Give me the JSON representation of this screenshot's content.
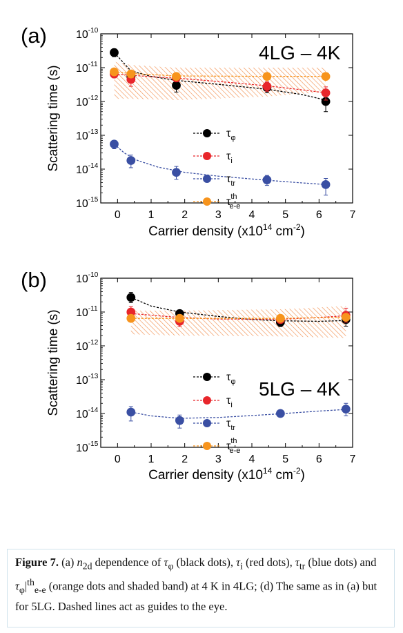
{
  "chart_data": [
    {
      "type": "scatter",
      "panel_label": "(a)",
      "annotation": "4LG – 4K",
      "xlabel": "Carrier density (x10",
      "xlabel_sup": "14",
      "xlabel_unit": " cm",
      "xlabel_unit_sup": "-2",
      "xlabel_end": ")",
      "ylabel": "Scattering time (s)",
      "xlim": [
        -0.5,
        7
      ],
      "ylim_log10": [
        -15,
        -10
      ],
      "x_ticks": [
        "0",
        "1",
        "2",
        "3",
        "4",
        "5",
        "6",
        "7"
      ],
      "log_scale_y": true,
      "y_tick_exponents": [
        "-10",
        "-11",
        "-12",
        "-13",
        "-14",
        "-15"
      ],
      "series": [
        {
          "key": "phi",
          "name_main": "τ",
          "name_sub": "φ",
          "name_sup": "",
          "color": "#000000",
          "points": [
            {
              "x": -0.1,
              "y": 2.8e-11,
              "ylo": 2.1e-11,
              "yhi": 3.6e-11
            },
            {
              "x": 0.4,
              "y": 5.5e-12,
              "ylo": 3.8e-12,
              "yhi": 7.5e-12
            },
            {
              "x": 1.75,
              "y": 3e-12,
              "ylo": 1.9e-12,
              "yhi": 4.6e-12
            },
            {
              "x": 4.45,
              "y": 2.6e-12,
              "ylo": 1.8e-12,
              "yhi": 3.6e-12
            },
            {
              "x": 6.2,
              "y": 1e-12,
              "ylo": 5e-13,
              "yhi": 1.8e-12
            }
          ],
          "fit": [
            {
              "x": -0.1,
              "y": 2.8e-11
            },
            {
              "x": 0.4,
              "y": 8e-12
            },
            {
              "x": 1.0,
              "y": 5.5e-12
            },
            {
              "x": 1.75,
              "y": 4.2e-12
            },
            {
              "x": 3.0,
              "y": 3.2e-12
            },
            {
              "x": 4.45,
              "y": 2.3e-12
            },
            {
              "x": 5.5,
              "y": 1.6e-12
            },
            {
              "x": 6.2,
              "y": 1.1e-12
            }
          ]
        },
        {
          "key": "i",
          "name_main": "τ",
          "name_sub": "i",
          "name_sup": "",
          "color": "#e8262b",
          "points": [
            {
              "x": -0.1,
              "y": 6.5e-12,
              "ylo": 5e-12,
              "yhi": 8.5e-12
            },
            {
              "x": 0.4,
              "y": 4.5e-12,
              "ylo": 2.8e-12,
              "yhi": 6.5e-12
            },
            {
              "x": 1.75,
              "y": 5e-12,
              "ylo": 3.8e-12,
              "yhi": 6.5e-12
            },
            {
              "x": 4.45,
              "y": 2.8e-12,
              "ylo": 2e-12,
              "yhi": 3.8e-12
            },
            {
              "x": 6.2,
              "y": 1.8e-12,
              "ylo": 1.1e-12,
              "yhi": 2.7e-12
            }
          ],
          "fit": [
            {
              "x": -0.1,
              "y": 6.5e-12
            },
            {
              "x": 1.0,
              "y": 5.4e-12
            },
            {
              "x": 2.0,
              "y": 4.7e-12
            },
            {
              "x": 3.0,
              "y": 3.9e-12
            },
            {
              "x": 4.45,
              "y": 2.9e-12
            },
            {
              "x": 5.5,
              "y": 2.2e-12
            },
            {
              "x": 6.2,
              "y": 1.8e-12
            }
          ]
        },
        {
          "key": "tr",
          "name_main": "τ",
          "name_sub": "tr",
          "name_sup": "",
          "color": "#3a4fa3",
          "points": [
            {
              "x": -0.1,
              "y": 5.5e-14,
              "ylo": 4e-14,
              "yhi": 7e-14
            },
            {
              "x": 0.4,
              "y": 1.8e-14,
              "ylo": 1.1e-14,
              "yhi": 2.6e-14
            },
            {
              "x": 1.75,
              "y": 8e-15,
              "ylo": 5e-15,
              "yhi": 1.2e-14
            },
            {
              "x": 4.45,
              "y": 4.8e-15,
              "ylo": 3.3e-15,
              "yhi": 6.5e-15
            },
            {
              "x": 6.2,
              "y": 3.5e-15,
              "ylo": 1.7e-15,
              "yhi": 5.3e-15
            }
          ],
          "fit": [
            {
              "x": -0.1,
              "y": 5.5e-14
            },
            {
              "x": 0.2,
              "y": 3e-14
            },
            {
              "x": 0.6,
              "y": 1.8e-14
            },
            {
              "x": 1.2,
              "y": 1.15e-14
            },
            {
              "x": 2.0,
              "y": 8e-15
            },
            {
              "x": 3.0,
              "y": 6.2e-15
            },
            {
              "x": 4.45,
              "y": 4.7e-15
            },
            {
              "x": 5.5,
              "y": 3.9e-15
            },
            {
              "x": 6.2,
              "y": 3.5e-15
            }
          ]
        },
        {
          "key": "ee",
          "name_main": "τ",
          "name_sub": "e-e",
          "name_sup": "th",
          "color": "#f7941d",
          "points": [
            {
              "x": -0.1,
              "y": 7.5e-12,
              "ylo": 6.5e-12,
              "yhi": 8.8e-12
            },
            {
              "x": 0.4,
              "y": 6.5e-12,
              "ylo": 5.5e-12,
              "yhi": 7.5e-12
            },
            {
              "x": 1.75,
              "y": 5.5e-12,
              "ylo": 4.8e-12,
              "yhi": 6.4e-12
            },
            {
              "x": 4.45,
              "y": 5.5e-12,
              "ylo": 4.8e-12,
              "yhi": 6.4e-12
            },
            {
              "x": 6.2,
              "y": 5.5e-12,
              "ylo": 4.8e-12,
              "yhi": 6.4e-12
            }
          ],
          "fit": [
            {
              "x": -0.1,
              "y": 7.5e-12
            },
            {
              "x": 0.4,
              "y": 6.7e-12
            },
            {
              "x": 1.75,
              "y": 5.7e-12
            },
            {
              "x": 4.45,
              "y": 5.5e-12
            },
            {
              "x": 6.2,
              "y": 5.5e-12
            }
          ]
        }
      ],
      "band": {
        "x": [
          -0.1,
          0.4,
          1.75,
          4.45,
          6.2
        ],
        "lower": [
          1.2e-12,
          1.2e-12,
          1.1e-12,
          1.4e-12,
          1.9e-12
        ],
        "upper": [
          1.5e-11,
          1.2e-11,
          1e-11,
          1e-11,
          1e-11
        ]
      }
    },
    {
      "type": "scatter",
      "panel_label": "(b)",
      "annotation": "5LG – 4K",
      "xlabel": "Carrier density (x10",
      "xlabel_sup": "14",
      "xlabel_unit": " cm",
      "xlabel_unit_sup": "-2",
      "xlabel_end": ")",
      "ylabel": "Scattering time (s)",
      "xlim": [
        -0.5,
        7
      ],
      "ylim_log10": [
        -15,
        -10
      ],
      "x_ticks": [
        "0",
        "1",
        "2",
        "3",
        "4",
        "5",
        "6",
        "7"
      ],
      "log_scale_y": true,
      "y_tick_exponents": [
        "-10",
        "-11",
        "-12",
        "-13",
        "-14",
        "-15"
      ],
      "series": [
        {
          "key": "phi",
          "name_main": "τ",
          "name_sub": "φ",
          "name_sup": "",
          "color": "#000000",
          "points": [
            {
              "x": 0.4,
              "y": 2.7e-11,
              "ylo": 1.9e-11,
              "yhi": 3.8e-11
            },
            {
              "x": 1.85,
              "y": 9e-12,
              "ylo": 7e-12,
              "yhi": 1.15e-11
            },
            {
              "x": 4.85,
              "y": 5e-12,
              "ylo": 3.7e-12,
              "yhi": 6.7e-12
            },
            {
              "x": 6.8,
              "y": 6e-12,
              "ylo": 3.8e-12,
              "yhi": 9e-12
            }
          ],
          "fit": [
            {
              "x": 0.4,
              "y": 2.7e-11
            },
            {
              "x": 1.0,
              "y": 1.5e-11
            },
            {
              "x": 1.85,
              "y": 1e-11
            },
            {
              "x": 3.0,
              "y": 7.4e-12
            },
            {
              "x": 4.0,
              "y": 6e-12
            },
            {
              "x": 4.85,
              "y": 5.5e-12
            },
            {
              "x": 6.0,
              "y": 5.3e-12
            },
            {
              "x": 6.8,
              "y": 5.6e-12
            }
          ]
        },
        {
          "key": "i",
          "name_main": "τ",
          "name_sub": "i",
          "name_sup": "",
          "color": "#e8262b",
          "points": [
            {
              "x": 0.4,
              "y": 1e-11,
              "ylo": 6.5e-12,
              "yhi": 1.45e-11
            },
            {
              "x": 1.85,
              "y": 5.3e-12,
              "ylo": 3.7e-12,
              "yhi": 7.5e-12
            },
            {
              "x": 4.85,
              "y": 6e-12,
              "ylo": 4.7e-12,
              "yhi": 7.5e-12
            },
            {
              "x": 6.8,
              "y": 8e-12,
              "ylo": 5e-12,
              "yhi": 1.3e-11
            }
          ],
          "fit": [
            {
              "x": 0.4,
              "y": 9e-12
            },
            {
              "x": 1.85,
              "y": 6.9e-12
            },
            {
              "x": 3.0,
              "y": 6.2e-12
            },
            {
              "x": 4.85,
              "y": 6.1e-12
            },
            {
              "x": 6.0,
              "y": 6.9e-12
            },
            {
              "x": 6.8,
              "y": 7.8e-12
            }
          ]
        },
        {
          "key": "tr",
          "name_main": "τ",
          "name_sub": "tr",
          "name_sup": "",
          "color": "#3a4fa3",
          "points": [
            {
              "x": 0.4,
              "y": 1.1e-14,
              "ylo": 6e-15,
              "yhi": 1.6e-14
            },
            {
              "x": 1.85,
              "y": 6.2e-15,
              "ylo": 3.7e-15,
              "yhi": 9e-15
            },
            {
              "x": 4.85,
              "y": 1e-14,
              "ylo": 8e-15,
              "yhi": 1.25e-14
            },
            {
              "x": 6.8,
              "y": 1.35e-14,
              "ylo": 8.5e-15,
              "yhi": 2e-14
            }
          ],
          "fit": [
            {
              "x": 0.4,
              "y": 1.1e-14
            },
            {
              "x": 1.0,
              "y": 8.5e-15
            },
            {
              "x": 1.85,
              "y": 7.2e-15
            },
            {
              "x": 3.0,
              "y": 7.6e-15
            },
            {
              "x": 4.0,
              "y": 8.7e-15
            },
            {
              "x": 4.85,
              "y": 9.8e-15
            },
            {
              "x": 6.0,
              "y": 1.18e-14
            },
            {
              "x": 6.8,
              "y": 1.32e-14
            }
          ]
        },
        {
          "key": "ee",
          "name_main": "τ",
          "name_sub": "e-e",
          "name_sup": "th",
          "color": "#f7941d",
          "points": [
            {
              "x": 0.4,
              "y": 6.5e-12,
              "ylo": 5.5e-12,
              "yhi": 7.5e-12
            },
            {
              "x": 1.85,
              "y": 6.5e-12,
              "ylo": 5.5e-12,
              "yhi": 7.5e-12
            },
            {
              "x": 4.85,
              "y": 6.5e-12,
              "ylo": 5.5e-12,
              "yhi": 7.5e-12
            },
            {
              "x": 6.8,
              "y": 7e-12,
              "ylo": 6e-12,
              "yhi": 8e-12
            }
          ],
          "fit": [
            {
              "x": 0.4,
              "y": 6.5e-12
            },
            {
              "x": 1.85,
              "y": 6.5e-12
            },
            {
              "x": 4.85,
              "y": 6.5e-12
            },
            {
              "x": 6.8,
              "y": 7e-12
            }
          ]
        }
      ],
      "band": {
        "x": [
          0.4,
          1.85,
          4.85,
          6.8
        ],
        "lower": [
          2.2e-12,
          2e-12,
          1.9e-12,
          1.7e-12
        ],
        "upper": [
          1.1e-11,
          1.1e-11,
          1.2e-11,
          1.5e-11
        ]
      }
    }
  ],
  "caption": {
    "label": "Figure 7.",
    "text_1": " (a) ",
    "n2d": "n",
    "n2d_sub": "2d",
    "text_2": " dependence of ",
    "tphi": "τ",
    "tphi_sub": "φ",
    "text_3": " (black dots), ",
    "ti": "τ",
    "ti_sub": "i",
    "text_4": " (red dots), ",
    "ttr": "τ",
    "ttr_sub": "tr",
    "text_5": " (blue dots) and ",
    "tee": "τ",
    "tee_sub": "φ",
    "tee_bar": "|",
    "tee_sup": "th",
    "tee_sub2": "e-e",
    "text_6": " (orange dots and shaded band) at 4 K in 4LG; (d) The same as in (a) but for 5LG. Dashed lines act as guides to the eye."
  }
}
